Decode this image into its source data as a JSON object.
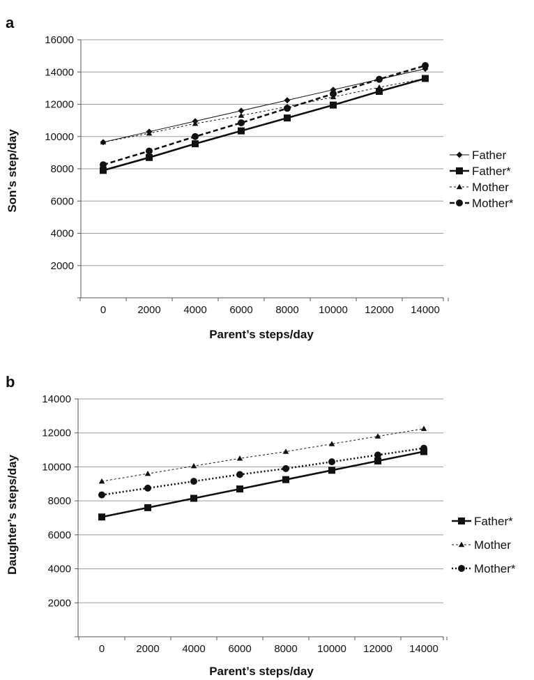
{
  "chart_data": [
    {
      "type": "line",
      "panel_label": "a",
      "title": "",
      "xlabel": "Parent’s steps/day",
      "ylabel": "Son’s step/day",
      "x": [
        0,
        2000,
        4000,
        6000,
        8000,
        10000,
        12000,
        14000
      ],
      "x_tick_labels": [
        "0",
        "2000",
        "4000",
        "6000",
        "8000",
        "10000",
        "12000",
        "14000"
      ],
      "ylim": [
        0,
        16000
      ],
      "y_tick_labels": [
        "2000",
        "4000",
        "6000",
        "8000",
        "10000",
        "12000",
        "14000",
        "16000"
      ],
      "grid": "horizontal",
      "legend_placement": "right",
      "series": [
        {
          "name": "Father",
          "marker": "diamond",
          "style": "thin",
          "values": [
            9650,
            10300,
            10950,
            11600,
            12250,
            12900,
            13550,
            14200
          ]
        },
        {
          "name": "Father*",
          "marker": "square",
          "style": "thick",
          "values": [
            7900,
            8700,
            9550,
            10350,
            11150,
            11950,
            12800,
            13600
          ]
        },
        {
          "name": "Mother",
          "marker": "triangle",
          "style": "dashed-thin",
          "values": [
            9650,
            10200,
            10800,
            11300,
            11850,
            12450,
            13050,
            13600
          ]
        },
        {
          "name": "Mother*",
          "marker": "circle",
          "style": "dashed-thick",
          "values": [
            8250,
            9100,
            10000,
            10850,
            11750,
            12650,
            13550,
            14400
          ]
        }
      ]
    },
    {
      "type": "line",
      "panel_label": "b",
      "title": "",
      "xlabel": "Parent’s steps/day",
      "ylabel": "Daughter’s steps/day",
      "x": [
        0,
        2000,
        4000,
        6000,
        8000,
        10000,
        12000,
        14000
      ],
      "x_tick_labels": [
        "0",
        "2000",
        "4000",
        "6000",
        "8000",
        "10000",
        "12000",
        "14000"
      ],
      "ylim": [
        0,
        14000
      ],
      "y_tick_labels": [
        "2000",
        "4000",
        "6000",
        "8000",
        "10000",
        "12000",
        "14000"
      ],
      "grid": "horizontal",
      "legend_placement": "right",
      "series": [
        {
          "name": "Father*",
          "marker": "square",
          "style": "thick",
          "values": [
            7050,
            7600,
            8150,
            8700,
            9250,
            9800,
            10350,
            10900
          ]
        },
        {
          "name": "Mother",
          "marker": "triangle",
          "style": "dashed-thin",
          "values": [
            9150,
            9600,
            10050,
            10500,
            10900,
            11350,
            11800,
            12250
          ]
        },
        {
          "name": "Mother*",
          "marker": "circle",
          "style": "dotted-thick",
          "values": [
            8350,
            8750,
            9150,
            9550,
            9900,
            10300,
            10700,
            11100
          ]
        }
      ]
    }
  ]
}
